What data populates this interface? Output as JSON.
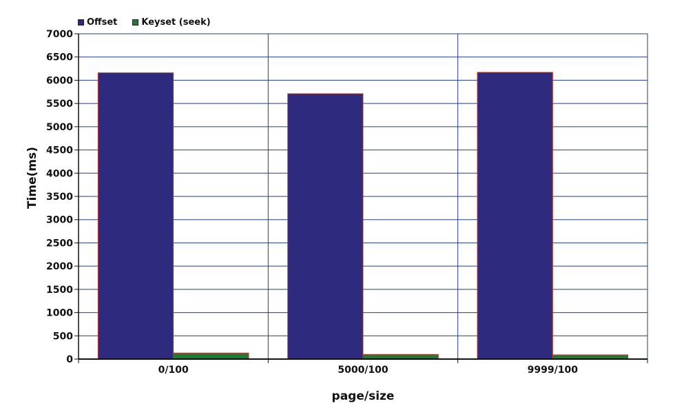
{
  "chart_data": {
    "type": "bar",
    "title": "",
    "xlabel": "page/size",
    "ylabel": "Time(ms)",
    "categories": [
      "0/100",
      "5000/100",
      "9999/100"
    ],
    "series": [
      {
        "name": "Offset",
        "values": [
          6160,
          5710,
          6170
        ],
        "color": "#2e2b7f"
      },
      {
        "name": "Keyset (seek)",
        "values": [
          130,
          100,
          90
        ],
        "color": "#1f7a35"
      }
    ],
    "ylim": [
      0,
      7000
    ],
    "yticks": [
      0,
      500,
      1000,
      1500,
      2000,
      2500,
      3000,
      3500,
      4000,
      4500,
      5000,
      5500,
      6000,
      6500,
      7000
    ],
    "grid": true,
    "legend_position": "top-left",
    "bar_edge_color": "#c0392b",
    "grid_color": "#1f3f7a"
  }
}
